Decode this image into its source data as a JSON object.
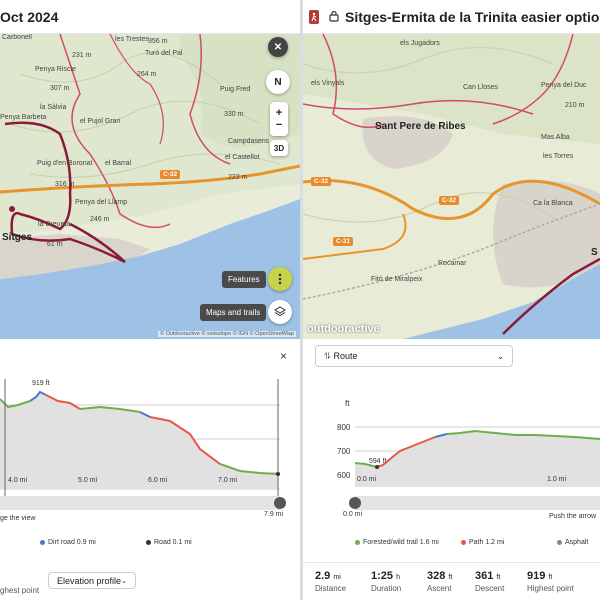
{
  "left": {
    "title": "Oct 2024",
    "map": {
      "labels": [
        "Carbonell",
        "les Trestes",
        "356 m",
        "Turó del Pal",
        "231 m",
        "Penya Riscle",
        "264 m",
        "307 m",
        "Puig Fred",
        "330 m",
        "la Sàlvia",
        "Penya Barbeta",
        "el Pujol Gran",
        "Campdasens",
        "Puig d'en Boronat",
        "el Barral",
        "el Castellot",
        "316 m",
        "223 m",
        "Penya del Llamp",
        "246 m",
        "la Creueta",
        "Sitges",
        "61 m",
        "C-32"
      ],
      "attribution": "© Outdooractive © swisstopo © IGN © OpenStreetMap"
    },
    "controls": {
      "close": "✕",
      "north": "N",
      "zoom_in": "+",
      "zoom_out": "−",
      "view3d": "3D",
      "features_label": "Features",
      "maps_label": "Maps and trails"
    },
    "elevation": {
      "close": "×",
      "peak_label": "919 ft",
      "x_ticks": [
        "4.0 mi",
        "5.0 mi",
        "6.0 mi",
        "7.0 mi"
      ],
      "slider_end": "7.9 mi",
      "hint": "ge the view",
      "legend": [
        {
          "label": "Dirt road 0.9 mi",
          "color": "#4a78c8"
        },
        {
          "label": "Road 0.1 mi",
          "color": "#333333"
        }
      ],
      "bottom_left": "ghest point",
      "select_value": "Elevation profile"
    }
  },
  "right": {
    "title": "Sitges-Ermita de la Trinita easier option",
    "map": {
      "labels": [
        "els Jugadors",
        "els Vinyals",
        "Can Lloses",
        "Penya del Duc",
        "210 m",
        "Sant Pere de Ribes",
        "Mas Alba",
        "les Torres",
        "Ca la Blanca",
        "Rocamar",
        "Fitó de Miralpeix",
        "C-32",
        "C-31",
        "C-32",
        "S"
      ],
      "attribution": "outdooractive"
    },
    "route_select": "Route",
    "elevation": {
      "y_unit": "ft",
      "y_ticks": [
        "800",
        "700",
        "600"
      ],
      "start_label": "594 ft",
      "x_ticks": [
        "0.0 mi",
        "1.0 mi"
      ],
      "slider_start": "0.0 mi",
      "hint": "Push the arrow",
      "legend": [
        {
          "label": "Forested/wild trail 1.6 mi",
          "color": "#6ab04c"
        },
        {
          "label": "Path 1.2 mi",
          "color": "#e8574a"
        },
        {
          "label": "Asphalt",
          "color": "#888888"
        }
      ]
    },
    "stats": [
      {
        "value": "2.9",
        "unit": "mi",
        "label": "Distance"
      },
      {
        "value": "1:25",
        "unit": "h",
        "label": "Duration"
      },
      {
        "value": "328",
        "unit": "ft",
        "label": "Ascent"
      },
      {
        "value": "361",
        "unit": "ft",
        "label": "Descent"
      },
      {
        "value": "919",
        "unit": "ft",
        "label": "Highest point"
      }
    ]
  }
}
